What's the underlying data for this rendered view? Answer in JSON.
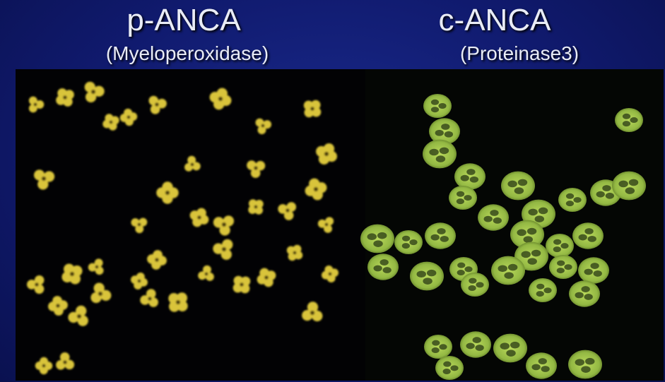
{
  "left_panel": {
    "title": "p-ANCA",
    "subtitle": "(Myeloperoxidase)"
  },
  "right_panel": {
    "title": "c-ANCA",
    "subtitle": "(Proteinase3)"
  },
  "colors": {
    "background": "#101a6e",
    "title_text": "#e9ecf6",
    "p_anca_stain": "#d9c43a",
    "c_anca_stain": "#9cc24a",
    "nucleus_dark": "#2a3a14"
  }
}
